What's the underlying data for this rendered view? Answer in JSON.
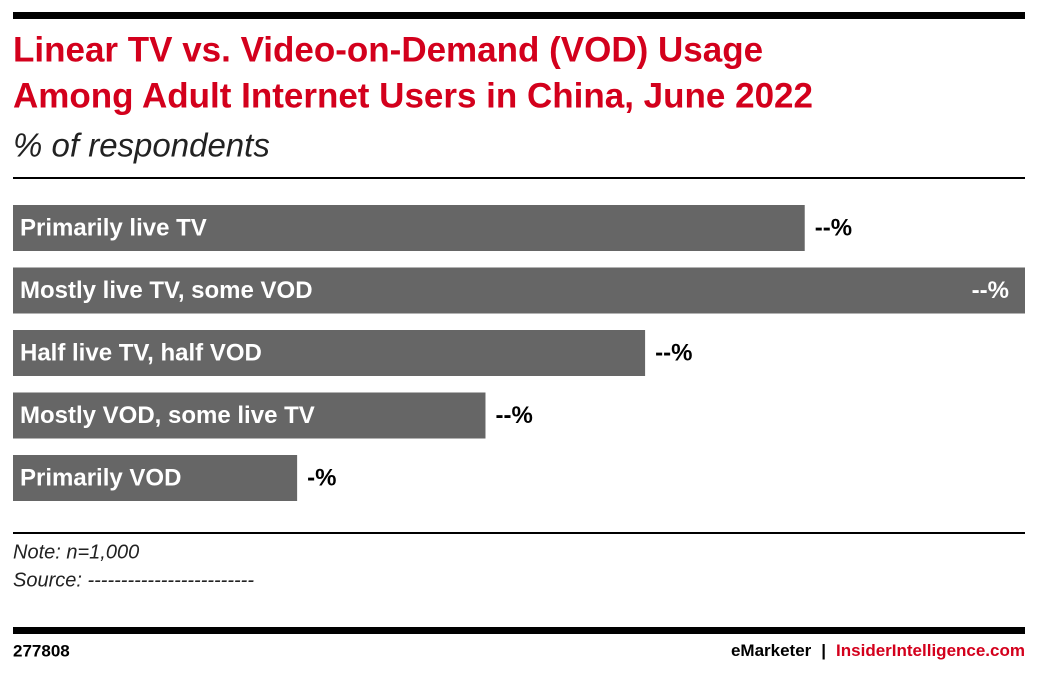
{
  "chart_data": {
    "type": "hbar",
    "title": [
      "Linear TV vs. Video-on-Demand (VOD) Usage",
      "Among Adult Internet Users in China, June 2022"
    ],
    "subtitle": "% of respondents",
    "categories": [
      "Primarily live TV",
      "Mostly live TV, some VOD",
      "Half live TV, half VOD",
      "Mostly VOD, some live TV",
      "Primarily VOD"
    ],
    "values": [
      24.8,
      31.7,
      19.8,
      14.8,
      8.9
    ],
    "value_labels": [
      "--%",
      "--%",
      "--%",
      "--%",
      "-%"
    ],
    "color": "#666666",
    "note": "Note: n=1,000",
    "source": "Source: -------------------------"
  },
  "footer": {
    "id": "277808",
    "brand": "eMarketer",
    "separator": "|",
    "site": "InsiderIntelligence.com"
  }
}
